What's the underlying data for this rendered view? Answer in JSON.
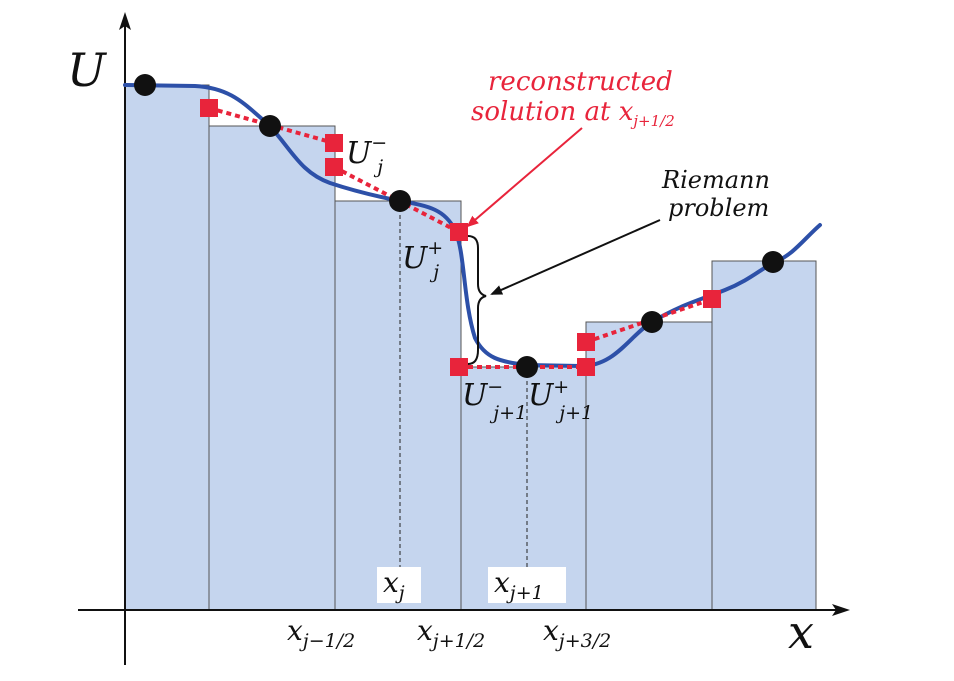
{
  "axes": {
    "y_label": "U",
    "x_label": "x"
  },
  "x_ticks": [
    {
      "base": "x",
      "sub": "j−1/2"
    },
    {
      "base": "x",
      "sub": "j+1/2"
    },
    {
      "base": "x",
      "sub": "j+3/2"
    }
  ],
  "cell_centers": [
    {
      "base": "x",
      "sub": "j"
    },
    {
      "base": "x",
      "sub": "j+1"
    }
  ],
  "value_labels": {
    "uj_minus": {
      "base": "U",
      "sub": "j",
      "sup": "−"
    },
    "uj_plus": {
      "base": "U",
      "sub": "j",
      "sup": "+"
    },
    "uj1_minus": {
      "base": "U",
      "sub": "j+1",
      "sup": "−"
    },
    "uj1_plus": {
      "base": "U",
      "sub": "j+1",
      "sup": "+"
    }
  },
  "annotations": {
    "reconstructed_line1": "reconstructed",
    "reconstructed_line2": "solution at x",
    "reconstructed_sub": "j+1/2",
    "riemann_line1": "Riemann",
    "riemann_line2": "problem"
  },
  "colors": {
    "cell_fill": "#c5d5ee",
    "cell_stroke": "#555555",
    "curve": "#2d50a8",
    "reconstruction": "#e8243b",
    "cell_average_marker": "#111111",
    "axis": "#111111"
  }
}
